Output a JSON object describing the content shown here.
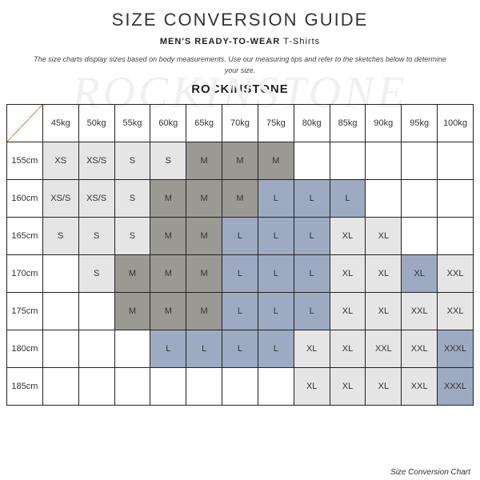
{
  "title": "SIZE CONVERSION GUIDE",
  "subtitle": {
    "bold": "MEN'S READY-TO-WEAR",
    "light": "T-Shirts"
  },
  "note": "The size charts display sizes based on body measurements. Use our measuring tips and refer to the sketches below to determine your size.",
  "brand": "ROCKINSTONE",
  "watermark": "ROCKINSTONE",
  "caption": "Size Conversion Chart",
  "colors": {
    "gray": "#e5e5e5",
    "dgray": "#9a9a93",
    "blue": "#9eaac2",
    "border": "#222222",
    "background": "#ffffff"
  },
  "table": {
    "columns": [
      "45kg",
      "50kg",
      "55kg",
      "60kg",
      "65kg",
      "70kg",
      "75kg",
      "80kg",
      "85kg",
      "90kg",
      "95kg",
      "100kg"
    ],
    "rows": [
      {
        "h": "155cm",
        "cells": [
          [
            "XS",
            "gray"
          ],
          [
            "XS/S",
            "gray"
          ],
          [
            "S",
            "gray"
          ],
          [
            "S",
            "gray"
          ],
          [
            "M",
            "dgray"
          ],
          [
            "M",
            "dgray"
          ],
          [
            "M",
            "dgray"
          ],
          [
            "",
            ""
          ],
          [
            "",
            ""
          ],
          [
            "",
            ""
          ],
          [
            "",
            ""
          ],
          [
            "",
            ""
          ]
        ]
      },
      {
        "h": "160cm",
        "cells": [
          [
            "XS/S",
            "gray"
          ],
          [
            "XS/S",
            "gray"
          ],
          [
            "S",
            "gray"
          ],
          [
            "M",
            "dgray"
          ],
          [
            "M",
            "dgray"
          ],
          [
            "M",
            "dgray"
          ],
          [
            "L",
            "blue"
          ],
          [
            "L",
            "blue"
          ],
          [
            "L",
            "blue"
          ],
          [
            "",
            ""
          ],
          [
            "",
            ""
          ],
          [
            "",
            ""
          ]
        ]
      },
      {
        "h": "165cm",
        "cells": [
          [
            "S",
            "gray"
          ],
          [
            "S",
            "gray"
          ],
          [
            "S",
            "gray"
          ],
          [
            "M",
            "dgray"
          ],
          [
            "M",
            "dgray"
          ],
          [
            "L",
            "blue"
          ],
          [
            "L",
            "blue"
          ],
          [
            "L",
            "blue"
          ],
          [
            "XL",
            "gray"
          ],
          [
            "XL",
            "gray"
          ],
          [
            "",
            ""
          ],
          [
            "",
            ""
          ]
        ]
      },
      {
        "h": "170cm",
        "cells": [
          [
            "",
            ""
          ],
          [
            "S",
            "gray"
          ],
          [
            "M",
            "dgray"
          ],
          [
            "M",
            "dgray"
          ],
          [
            "M",
            "dgray"
          ],
          [
            "L",
            "blue"
          ],
          [
            "L",
            "blue"
          ],
          [
            "L",
            "blue"
          ],
          [
            "XL",
            "gray"
          ],
          [
            "XL",
            "gray"
          ],
          [
            "XL",
            "blue"
          ],
          [
            "XXL",
            "gray"
          ]
        ]
      },
      {
        "h": "175cm",
        "cells": [
          [
            "",
            ""
          ],
          [
            "",
            ""
          ],
          [
            "M",
            "dgray"
          ],
          [
            "M",
            "dgray"
          ],
          [
            "M",
            "dgray"
          ],
          [
            "L",
            "blue"
          ],
          [
            "L",
            "blue"
          ],
          [
            "L",
            "blue"
          ],
          [
            "XL",
            "gray"
          ],
          [
            "XL",
            "gray"
          ],
          [
            "XXL",
            "gray"
          ],
          [
            "XXL",
            "gray"
          ]
        ]
      },
      {
        "h": "180cm",
        "cells": [
          [
            "",
            ""
          ],
          [
            "",
            ""
          ],
          [
            "",
            ""
          ],
          [
            "L",
            "blue"
          ],
          [
            "L",
            "blue"
          ],
          [
            "L",
            "blue"
          ],
          [
            "L",
            "blue"
          ],
          [
            "XL",
            "gray"
          ],
          [
            "XL",
            "gray"
          ],
          [
            "XXL",
            "gray"
          ],
          [
            "XXL",
            "gray"
          ],
          [
            "XXXL",
            "blue"
          ]
        ]
      },
      {
        "h": "185cm",
        "cells": [
          [
            "",
            ""
          ],
          [
            "",
            ""
          ],
          [
            "",
            ""
          ],
          [
            "",
            ""
          ],
          [
            "",
            ""
          ],
          [
            "",
            ""
          ],
          [
            "",
            ""
          ],
          [
            "XL",
            "gray"
          ],
          [
            "XL",
            "gray"
          ],
          [
            "XL",
            "gray"
          ],
          [
            "XXL",
            "gray"
          ],
          [
            "XXXL",
            "blue"
          ]
        ]
      }
    ]
  }
}
